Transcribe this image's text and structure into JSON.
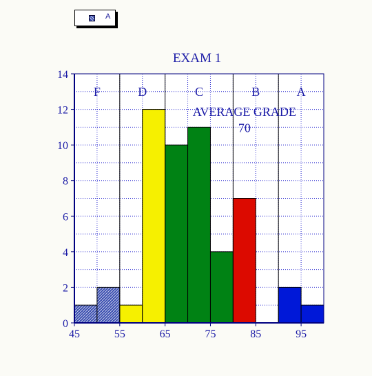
{
  "legend": {
    "label": "A"
  },
  "chart_data": {
    "type": "bar",
    "title": "EXAM 1",
    "xlabel": "",
    "ylabel": "",
    "xlim": [
      45,
      100
    ],
    "ylim": [
      0,
      14
    ],
    "x_ticks": [
      45,
      55,
      65,
      75,
      85,
      95
    ],
    "y_ticks": [
      0,
      2,
      4,
      6,
      8,
      10,
      12,
      14
    ],
    "grid": true,
    "legend_position": "top-left",
    "bin_width": 5,
    "bars": [
      {
        "x_start": 45,
        "value": 1,
        "color": "#3a4fb0",
        "pattern": "hatch"
      },
      {
        "x_start": 50,
        "value": 2,
        "color": "#3a4fb0",
        "pattern": "hatch"
      },
      {
        "x_start": 55,
        "value": 1,
        "color": "#f6f000"
      },
      {
        "x_start": 60,
        "value": 12,
        "color": "#f6f000"
      },
      {
        "x_start": 65,
        "value": 10,
        "color": "#008214"
      },
      {
        "x_start": 70,
        "value": 11,
        "color": "#008214"
      },
      {
        "x_start": 75,
        "value": 4,
        "color": "#008214"
      },
      {
        "x_start": 80,
        "value": 7,
        "color": "#dc0a00"
      },
      {
        "x_start": 85,
        "value": 0,
        "color": "#dc0a00"
      },
      {
        "x_start": 90,
        "value": 2,
        "color": "#0018d8"
      },
      {
        "x_start": 95,
        "value": 1,
        "color": "#0018d8"
      }
    ],
    "grade_boundaries": [
      55,
      65,
      80,
      90
    ],
    "grade_labels": [
      {
        "text": "F",
        "x": 50
      },
      {
        "text": "D",
        "x": 60
      },
      {
        "text": "C",
        "x": 72.5
      },
      {
        "text": "B",
        "x": 85
      },
      {
        "text": "A",
        "x": 95
      }
    ],
    "annotation": {
      "line1": "AVERAGE GRADE",
      "line2": "70",
      "x": 82.5,
      "y1": 11.9,
      "y2": 11.0
    }
  }
}
